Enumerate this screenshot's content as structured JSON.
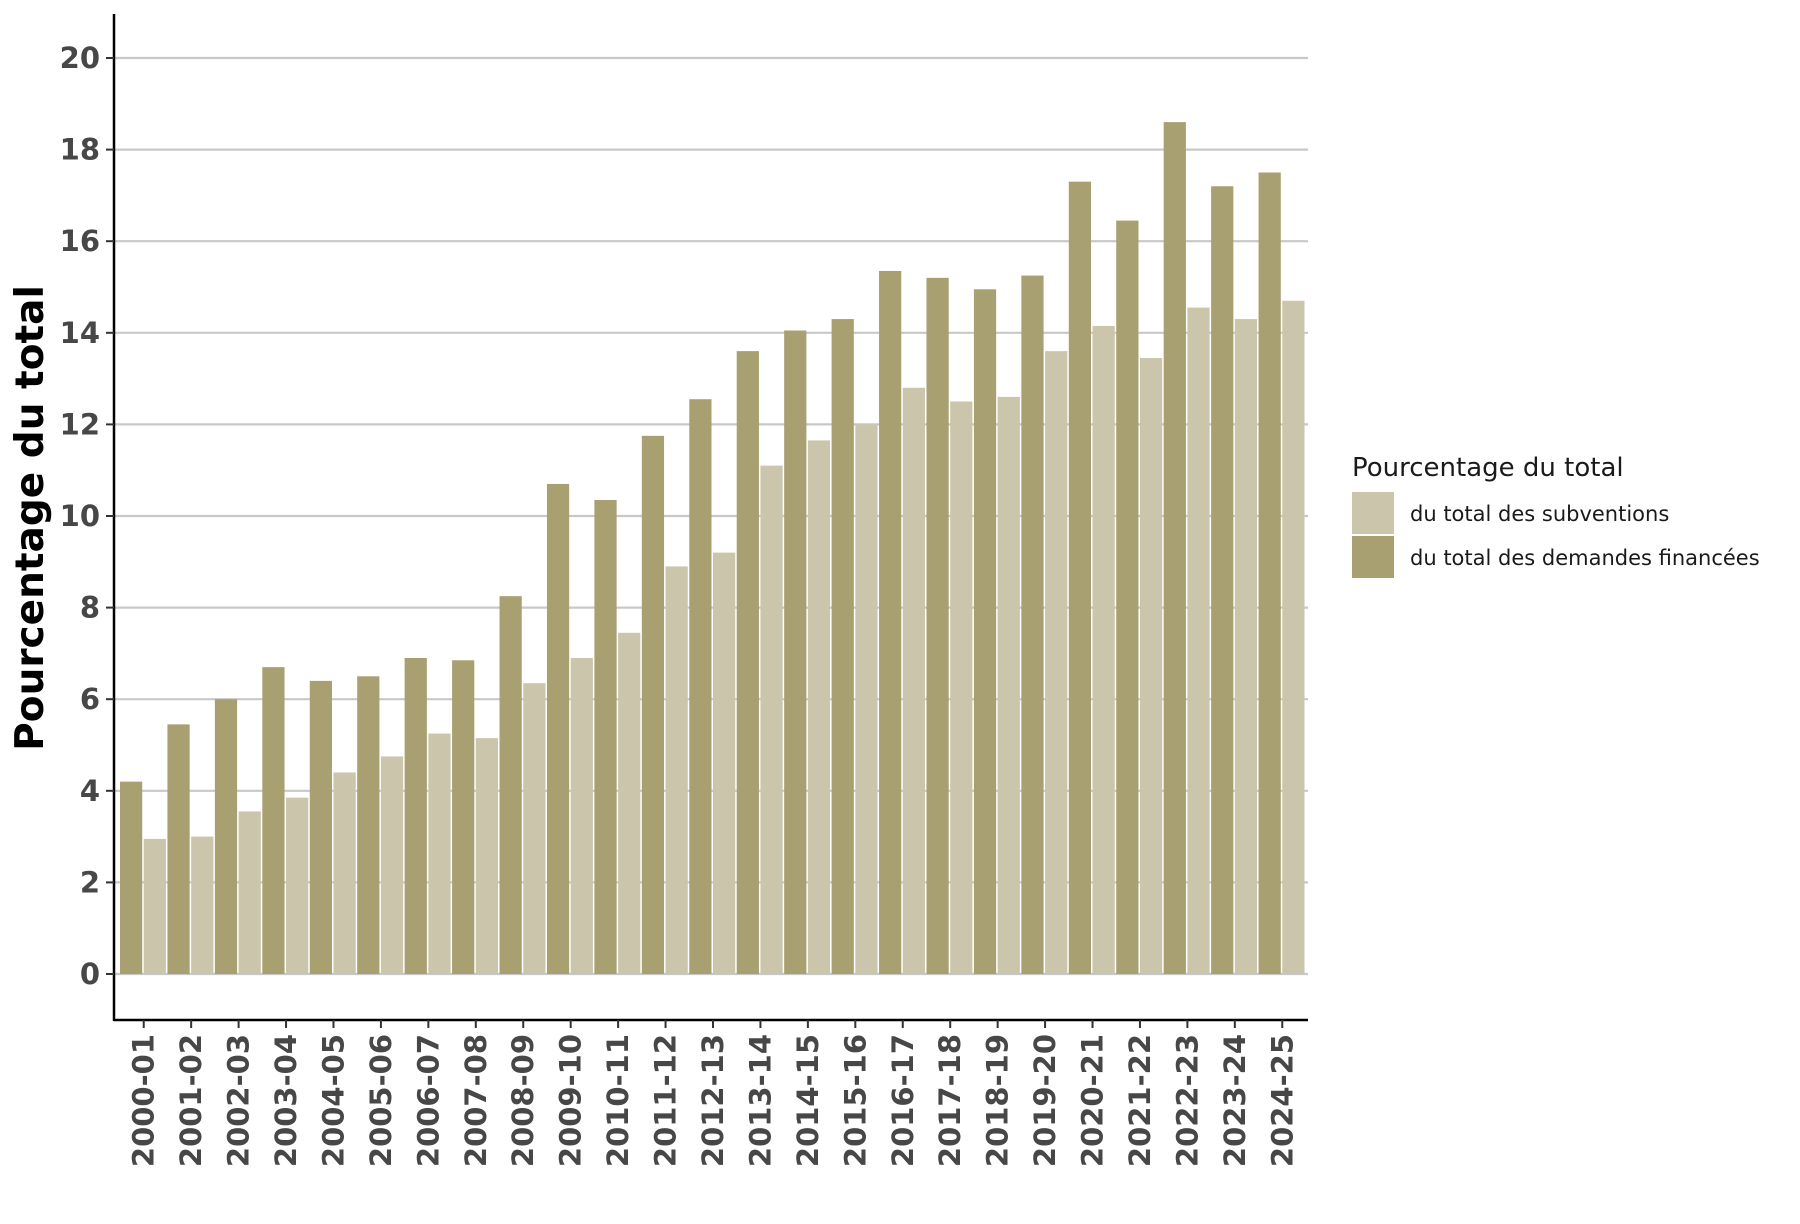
{
  "colors": {
    "subventions": "#cbc6ab",
    "demandes": "#a8a071",
    "grid": "#c8c8c8",
    "axis": "#000000",
    "background": "#ffffff"
  },
  "chart_data": {
    "type": "bar",
    "title": "",
    "xlabel": "",
    "ylabel": "Pourcentage du total",
    "ylim": [
      -1,
      21
    ],
    "yticks": [
      0,
      2,
      4,
      6,
      8,
      10,
      12,
      14,
      16,
      18,
      20
    ],
    "grid": true,
    "legend_position": "right",
    "legend_title": "Pourcentage du total",
    "categories": [
      "2000-01",
      "2001-02",
      "2002-03",
      "2003-04",
      "2004-05",
      "2005-06",
      "2006-07",
      "2007-08",
      "2008-09",
      "2009-10",
      "2010-11",
      "2011-12",
      "2012-13",
      "2013-14",
      "2014-15",
      "2015-16",
      "2016-17",
      "2017-18",
      "2018-19",
      "2019-20",
      "2020-21",
      "2021-22",
      "2022-23",
      "2023-24",
      "2024-25"
    ],
    "series": [
      {
        "name": "du total des demandes financées",
        "color_key": "demandes",
        "values": [
          4.2,
          5.45,
          6.0,
          6.7,
          6.4,
          6.5,
          6.9,
          6.85,
          8.25,
          10.7,
          10.35,
          11.75,
          12.55,
          13.6,
          14.05,
          14.3,
          15.35,
          15.2,
          14.95,
          15.25,
          17.3,
          16.45,
          18.6,
          17.2,
          17.5
        ]
      },
      {
        "name": "du total des subventions",
        "color_key": "subventions",
        "values": [
          2.95,
          3.0,
          3.55,
          3.85,
          4.4,
          4.75,
          5.25,
          5.15,
          6.35,
          6.9,
          7.45,
          8.9,
          9.2,
          11.1,
          11.65,
          12.0,
          12.8,
          12.5,
          12.6,
          13.6,
          14.15,
          13.45,
          14.55,
          14.3,
          14.7
        ]
      }
    ],
    "legend_order": [
      "du total des subventions",
      "du total des demandes financées"
    ]
  }
}
